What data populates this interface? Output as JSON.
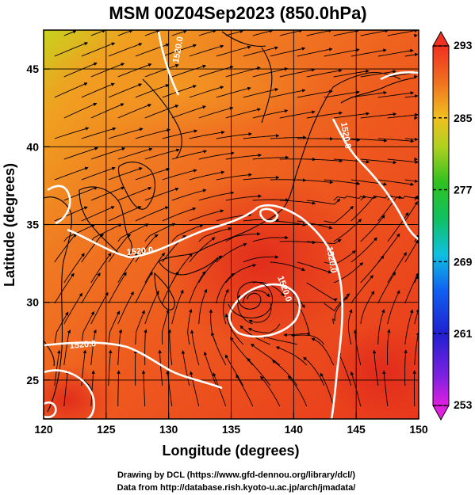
{
  "title": "MSM 00Z04Sep2023 (850.0hPa)",
  "x_axis": {
    "label": "Longitude (degrees)",
    "range": [
      120,
      150
    ],
    "ticks": [
      "120",
      "125",
      "130",
      "135",
      "140",
      "145",
      "150"
    ]
  },
  "y_axis": {
    "label": "Latitude  (degrees)",
    "range": [
      22.5,
      47.5
    ],
    "ticks": [
      "25",
      "30",
      "35",
      "40",
      "45"
    ]
  },
  "colorbar": {
    "range": [
      253,
      293
    ],
    "ticks": [
      "293",
      "285",
      "277",
      "269",
      "261",
      "253"
    ]
  },
  "contour_labels": [
    "1520.0",
    "1520.0",
    "1520.0",
    "1520.0",
    "1520.0",
    "1520.0"
  ],
  "credits": {
    "line1": "Drawing by DCL (https://www.gfd-dennou.org/library/dcl/)",
    "line2": "Data from http://database.rish.kyoto-u.ac.jp/arch/jmadata/"
  },
  "colors": {
    "field_main": "#ee4a1e",
    "field_warm": "#f26a24",
    "field_hot": "#e8321e",
    "field_cool": "#b8d020",
    "contour": "#ffffff",
    "streamline": "#000000"
  }
}
